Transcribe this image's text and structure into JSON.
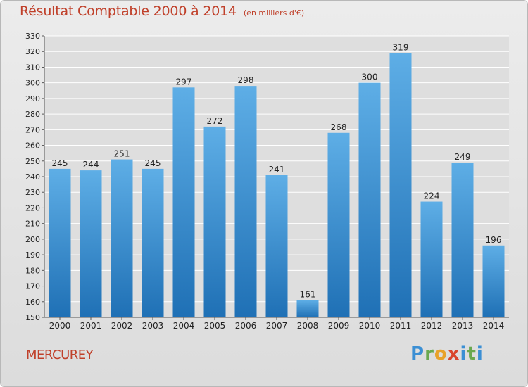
{
  "header": {
    "title": "Résultat Comptable 2000 à 2014",
    "unit": "(en milliers d'€)"
  },
  "footer": {
    "commune": "MERCUREY",
    "logo": "Proxiti"
  },
  "colors": {
    "title": "#c0402a",
    "bar_top": "#5eaee6",
    "bar_bottom": "#1f70b5",
    "grid": "#ffffff",
    "text": "#222222"
  },
  "chart_data": {
    "type": "bar",
    "title": "Résultat Comptable 2000 à 2014",
    "xlabel": "",
    "ylabel": "",
    "categories": [
      "2000",
      "2001",
      "2002",
      "2003",
      "2004",
      "2005",
      "2006",
      "2007",
      "2008",
      "2009",
      "2010",
      "2011",
      "2012",
      "2013",
      "2014"
    ],
    "values": [
      245,
      244,
      251,
      245,
      297,
      272,
      298,
      241,
      161,
      268,
      300,
      319,
      224,
      249,
      196
    ],
    "ylim": [
      150,
      330
    ],
    "ytick_step": 10,
    "grid": true,
    "data_labels": true
  }
}
